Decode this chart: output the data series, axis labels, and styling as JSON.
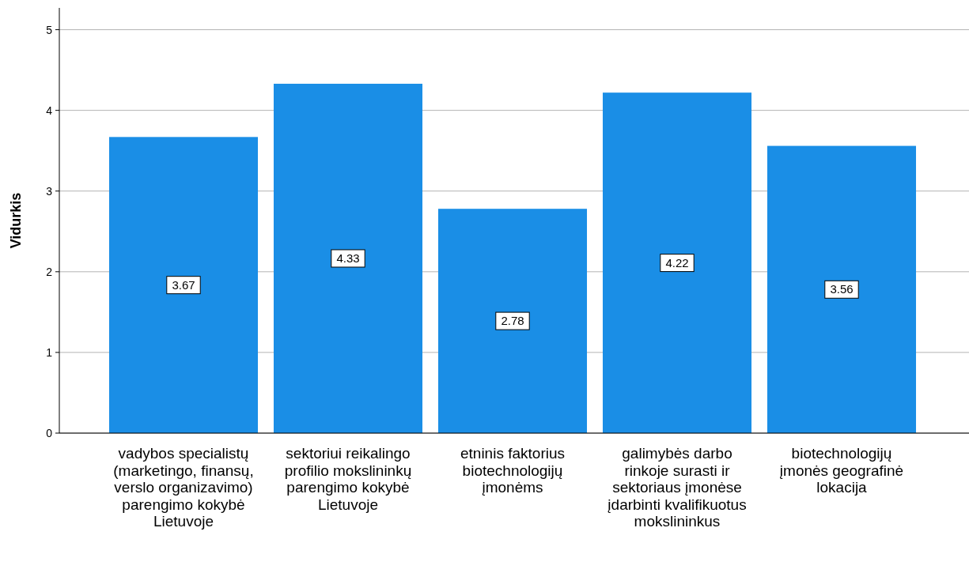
{
  "chart_data": {
    "type": "bar",
    "ylabel": "Vidurkis",
    "categories": [
      "vadybos specialistų (marketingo, finansų, verslo organizavimo) parengimo kokybė Lietuvoje",
      "sektoriui reikalingo profilio mokslininkų parengimo kokybė Lietuvoje",
      "etninis faktorius biotechnologijų įmonėms",
      "galimybės darbo rinkoje surasti ir sektoriaus įmonėse įdarbinti kvalifikuotus mokslininkus",
      "biotechnologijų įmonės geografinė lokacija"
    ],
    "values": [
      3.67,
      4.33,
      2.78,
      4.22,
      3.56
    ],
    "color": "#1a8ee6",
    "ylim": [
      0,
      5.27
    ],
    "yticks": [
      0,
      1,
      2,
      3,
      4,
      5
    ],
    "grid": "y",
    "data_labels": true
  }
}
